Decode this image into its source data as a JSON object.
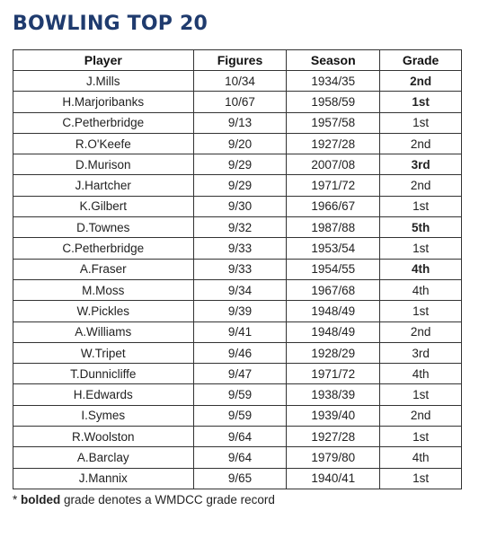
{
  "title": "BOWLING TOP 20",
  "columns": [
    "Player",
    "Figures",
    "Season",
    "Grade"
  ],
  "rows": [
    {
      "player": "J.Mills",
      "figures": "10/34",
      "season": "1934/35",
      "grade": "2nd",
      "record": true
    },
    {
      "player": "H.Marjoribanks",
      "figures": "10/67",
      "season": "1958/59",
      "grade": "1st",
      "record": true
    },
    {
      "player": "C.Petherbridge",
      "figures": "9/13",
      "season": "1957/58",
      "grade": "1st",
      "record": false
    },
    {
      "player": "R.O'Keefe",
      "figures": "9/20",
      "season": "1927/28",
      "grade": "2nd",
      "record": false
    },
    {
      "player": "D.Murison",
      "figures": "9/29",
      "season": "2007/08",
      "grade": "3rd",
      "record": true
    },
    {
      "player": "J.Hartcher",
      "figures": "9/29",
      "season": "1971/72",
      "grade": "2nd",
      "record": false
    },
    {
      "player": "K.Gilbert",
      "figures": "9/30",
      "season": "1966/67",
      "grade": "1st",
      "record": false
    },
    {
      "player": "D.Townes",
      "figures": "9/32",
      "season": "1987/88",
      "grade": "5th",
      "record": true
    },
    {
      "player": "C.Petherbridge",
      "figures": "9/33",
      "season": "1953/54",
      "grade": "1st",
      "record": false
    },
    {
      "player": "A.Fraser",
      "figures": "9/33",
      "season": "1954/55",
      "grade": "4th",
      "record": true
    },
    {
      "player": "M.Moss",
      "figures": "9/34",
      "season": "1967/68",
      "grade": "4th",
      "record": false
    },
    {
      "player": "W.Pickles",
      "figures": "9/39",
      "season": "1948/49",
      "grade": "1st",
      "record": false
    },
    {
      "player": "A.Williams",
      "figures": "9/41",
      "season": "1948/49",
      "grade": "2nd",
      "record": false
    },
    {
      "player": "W.Tripet",
      "figures": "9/46",
      "season": "1928/29",
      "grade": "3rd",
      "record": false
    },
    {
      "player": "T.Dunnicliffe",
      "figures": "9/47",
      "season": "1971/72",
      "grade": "4th",
      "record": false
    },
    {
      "player": "H.Edwards",
      "figures": "9/59",
      "season": "1938/39",
      "grade": "1st",
      "record": false
    },
    {
      "player": "I.Symes",
      "figures": "9/59",
      "season": "1939/40",
      "grade": "2nd",
      "record": false
    },
    {
      "player": "R.Woolston",
      "figures": "9/64",
      "season": "1927/28",
      "grade": "1st",
      "record": false
    },
    {
      "player": "A.Barclay",
      "figures": "9/64",
      "season": "1979/80",
      "grade": "4th",
      "record": false
    },
    {
      "player": "J.Mannix",
      "figures": "9/65",
      "season": "1940/41",
      "grade": "1st",
      "record": false
    }
  ],
  "footnote": {
    "prefix": "* ",
    "bold": "bolded",
    "rest": " grade denotes a WMDCC grade record"
  },
  "colors": {
    "title": "#1f3b6e",
    "border": "#333333"
  }
}
